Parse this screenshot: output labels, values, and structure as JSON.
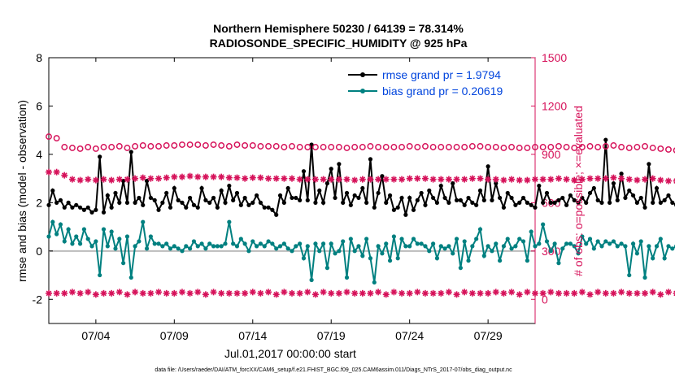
{
  "chart_data": {
    "type": "line",
    "title_line1": "Northern Hemisphere 50230 / 64139 = 78.314%",
    "title_line2": "RADIOSONDE_SPECIFIC_HUMIDITY @ 925 hPa",
    "xlabel": "Jul.01,2017 00:00:00 start",
    "ylabel_left": "rmse and bias (model - observation)",
    "ylabel_right": "# of obs: o=possible; ×=evaluated",
    "footer": "data file: /Users/raeder/DAI/ATM_forcXX/CAM6_setup/f.e21.FHIST_BGC.f09_025.CAM6assim.011/Diags_NTrS_2017-07/obs_diag_output.nc",
    "x_range": [
      1.0,
      32.0
    ],
    "xticks": [
      4,
      9,
      14,
      19,
      24,
      29
    ],
    "xtick_labels": [
      "07/04",
      "07/09",
      "07/14",
      "07/19",
      "07/24",
      "07/29"
    ],
    "ylim_left": [
      -3,
      8
    ],
    "yticks_left": [
      -2,
      0,
      2,
      4,
      6,
      8
    ],
    "yticks_left_labels": [
      "-2",
      "0",
      "2",
      "4",
      "6",
      "8"
    ],
    "ylim_right": [
      -150,
      1500
    ],
    "yticks_right": [
      0,
      300,
      600,
      900,
      1200,
      1500
    ],
    "yticks_right_labels": [
      "0",
      "300",
      "600",
      "900",
      "1200",
      "1500"
    ],
    "colors": {
      "rmse": "#000000",
      "bias": "#008080",
      "obs": "#d6125a",
      "right_axis": "#d6125a",
      "legend_text": "#0044dd",
      "zero_line": "#bbbbbb"
    },
    "legend": [
      {
        "label": "rmse grand pr = 1.9794",
        "series": "rmse"
      },
      {
        "label": "bias grand pr = 0.20619",
        "series": "bias"
      }
    ],
    "x_start": 1.0,
    "x_step": 0.25,
    "series": [
      {
        "name": "rmse",
        "axis": "left",
        "values": [
          1.9,
          2.5,
          2.0,
          2.1,
          1.8,
          2.0,
          1.8,
          1.9,
          1.8,
          1.7,
          1.8,
          1.6,
          1.7,
          3.9,
          1.6,
          2.3,
          1.8,
          2.4,
          2.0,
          2.9,
          2.0,
          4.1,
          2.0,
          2.2,
          1.9,
          2.9,
          2.2,
          2.1,
          1.7,
          2.0,
          2.4,
          1.8,
          2.6,
          2.1,
          2.0,
          1.8,
          2.2,
          1.9,
          1.8,
          2.6,
          2.1,
          2.0,
          2.2,
          1.8,
          2.5,
          2.0,
          2.7,
          2.1,
          2.4,
          1.9,
          2.2,
          1.9,
          2.0,
          2.3,
          2.0,
          1.8,
          1.8,
          1.7,
          1.5,
          2.3,
          2.0,
          2.6,
          2.2,
          2.2,
          2.1,
          3.3,
          2.1,
          4.4,
          2.0,
          2.5,
          2.0,
          2.8,
          3.4,
          2.2,
          3.6,
          2.0,
          2.4,
          1.9,
          2.3,
          2.2,
          2.6,
          2.0,
          3.8,
          1.8,
          2.4,
          3.1,
          2.0,
          2.3,
          1.7,
          1.8,
          2.2,
          1.5,
          2.2,
          1.7,
          2.1,
          2.4,
          1.9,
          2.5,
          2.2,
          2.0,
          2.7,
          2.2,
          2.0,
          2.8,
          2.1,
          2.1,
          1.9,
          2.2,
          2.0,
          1.9,
          2.5,
          2.1,
          3.5,
          2.1,
          2.8,
          2.2,
          1.8,
          2.4,
          2.2,
          1.9,
          2.0,
          2.2,
          2.0,
          1.9,
          1.8,
          2.7,
          2.0,
          2.4,
          2.0,
          2.0,
          2.1,
          2.2,
          1.9,
          2.3,
          2.1,
          2.0,
          2.2,
          2.0,
          2.4,
          2.6,
          2.1,
          2.0,
          4.6,
          2.0,
          2.8,
          2.1,
          3.2,
          2.2,
          2.5,
          2.3,
          2.0,
          2.2,
          1.8,
          3.6,
          2.0,
          2.6,
          2.0,
          2.1,
          2.3,
          2.0,
          1.9,
          3.5,
          2.0,
          2.2,
          2.0,
          2.1,
          2.4,
          3.4
        ]
      },
      {
        "name": "bias",
        "axis": "left",
        "values": [
          0.6,
          1.2,
          0.7,
          1.1,
          0.4,
          0.9,
          0.3,
          0.6,
          0.3,
          0.9,
          0.5,
          0.2,
          0.4,
          -1.0,
          0.9,
          0.2,
          0.8,
          0.1,
          0.5,
          -0.5,
          0.6,
          -1.1,
          0.2,
          0.4,
          1.2,
          0.1,
          0.6,
          0.3,
          0.3,
          0.2,
          0.3,
          0.1,
          0.2,
          0.1,
          0.0,
          0.2,
          0.1,
          0.4,
          0.2,
          0.3,
          0.1,
          0.3,
          0.2,
          0.2,
          0.2,
          0.3,
          1.2,
          0.3,
          0.2,
          0.5,
          0.3,
          0.0,
          0.4,
          0.2,
          0.3,
          0.2,
          0.4,
          0.3,
          0.1,
          0.2,
          0.3,
          0.1,
          0.0,
          0.2,
          0.3,
          -0.3,
          0.2,
          -1.2,
          0.3,
          0.0,
          0.3,
          -0.7,
          0.3,
          -0.1,
          0.0,
          0.4,
          -1.1,
          0.5,
          0.0,
          0.2,
          -0.2,
          0.5,
          -0.3,
          -1.3,
          0.2,
          -0.1,
          0.3,
          -0.4,
          0.6,
          -0.3,
          0.5,
          0.2,
          0.2,
          0.5,
          0.3,
          0.3,
          0.2,
          0.0,
          0.3,
          -0.3,
          0.2,
          0.1,
          0.2,
          -0.1,
          0.5,
          -0.7,
          0.4,
          -0.4,
          0.2,
          0.5,
          0.9,
          -0.2,
          0.2,
          0.0,
          0.3,
          -0.4,
          0.2,
          0.5,
          0.1,
          0.2,
          0.5,
          0.4,
          -0.4,
          0.8,
          0.2,
          0.3,
          1.1,
          0.4,
          0.0,
          0.3,
          -0.5,
          0.1,
          0.3,
          0.3,
          0.2,
          -0.1,
          0.6,
          0.3,
          0.5,
          0.1,
          0.4,
          0.2,
          0.4,
          0.3,
          0.4,
          0.2,
          0.3,
          0.2,
          -1.0,
          0.3,
          -0.1,
          0.4,
          -1.1,
          0.2,
          -0.3,
          0.2,
          0.5,
          -0.3,
          0.2,
          0.1,
          0.2,
          0.3,
          0.0,
          0.2,
          0.3,
          0.3,
          0.2,
          0.3,
          0.0,
          0.1,
          -0.5,
          -1.0
        ]
      },
      {
        "name": "obs_possible",
        "axis": "right",
        "marker": "circle",
        "values": [
          1010,
          965,
          1000,
          985,
          945,
          995,
          940,
          990,
          935,
          990,
          945,
          985,
          935,
          985,
          945,
          995,
          945,
          995,
          950,
          990,
          940,
          995,
          950,
          1000,
          955,
          995,
          950,
          1000,
          950,
          1005,
          955,
          1000,
          955,
          1005,
          960,
          1005,
          960,
          1010,
          960,
          1000,
          955,
          1005,
          960,
          1010,
          955,
          1000,
          950,
          1005,
          960,
          1000,
          955,
          1010,
          955,
          1005,
          950,
          1000,
          950,
          1005,
          950,
          1000,
          945,
          1000,
          950,
          1000,
          945,
          995,
          945,
          1000,
          945,
          995,
          945,
          995,
          945,
          1000,
          945,
          995,
          940,
          1000,
          945,
          995,
          945,
          1000,
          950,
          1005,
          945,
          995,
          945,
          1000,
          945,
          995,
          945,
          995,
          950,
          1000,
          945,
          995,
          950,
          1000,
          945,
          995,
          945,
          1000,
          945,
          990,
          945,
          1000,
          945,
          995,
          950,
          1000,
          950,
          995,
          945,
          995,
          945,
          990,
          940,
          995,
          945,
          990,
          940,
          990,
          940,
          995,
          945,
          990,
          945,
          1000,
          945,
          995,
          950,
          1000,
          945,
          995,
          940,
          990,
          945,
          995,
          950,
          1000,
          945,
          1005,
          950,
          1000,
          955,
          1000,
          945,
          995,
          940,
          990,
          945,
          1000,
          950,
          990,
          940,
          985,
          935,
          980,
          930,
          975,
          925,
          970,
          920,
          965,
          915,
          960,
          910,
          955
        ]
      },
      {
        "name": "obs_evaluated",
        "axis": "right",
        "marker": "asterisk",
        "values": [
          790,
          770,
          790,
          775,
          770,
          780,
          745,
          780,
          740,
          770,
          745,
          765,
          740,
          770,
          745,
          770,
          740,
          775,
          745,
          770,
          745,
          775,
          750,
          780,
          755,
          775,
          750,
          780,
          750,
          785,
          755,
          785,
          760,
          790,
          760,
          790,
          765,
          790,
          760,
          790,
          760,
          785,
          760,
          790,
          760,
          785,
          755,
          785,
          755,
          780,
          750,
          790,
          755,
          785,
          755,
          780,
          750,
          785,
          750,
          780,
          750,
          785,
          750,
          780,
          745,
          780,
          745,
          780,
          745,
          775,
          745,
          775,
          745,
          780,
          745,
          775,
          745,
          775,
          740,
          780,
          745,
          780,
          745,
          785,
          745,
          780,
          745,
          780,
          745,
          780,
          745,
          780,
          750,
          785,
          750,
          780,
          750,
          785,
          745,
          780,
          745,
          780,
          745,
          775,
          745,
          780,
          745,
          780,
          750,
          780,
          750,
          780,
          745,
          780,
          745,
          775,
          740,
          775,
          745,
          775,
          740,
          775,
          740,
          775,
          745,
          770,
          745,
          780,
          745,
          775,
          750,
          780,
          745,
          775,
          740,
          770,
          745,
          775,
          750,
          780,
          750,
          785,
          750,
          780,
          755,
          785,
          750,
          780,
          745,
          775,
          740,
          770,
          745,
          780,
          750,
          775,
          740,
          770,
          735,
          765,
          735,
          760,
          730,
          760,
          725,
          755,
          725,
          750,
          720,
          750,
          715,
          745
        ]
      },
      {
        "name": "obs_bottom",
        "axis": "left",
        "marker": "asterisk",
        "values": [
          -1.75,
          -1.9,
          -1.75,
          -1.85,
          -1.75,
          -1.8,
          -1.7,
          -1.8,
          -1.75,
          -1.8,
          -1.7,
          -1.75,
          -1.8,
          -1.7,
          -1.75,
          -1.8,
          -1.75,
          -1.8,
          -1.7,
          -1.75,
          -1.8,
          -1.75,
          -1.7,
          -1.8,
          -1.75,
          -1.85,
          -1.75,
          -1.8,
          -1.7,
          -1.8,
          -1.75,
          -1.85,
          -1.75,
          -1.8,
          -1.7,
          -1.8,
          -1.75,
          -1.8,
          -1.7,
          -1.75,
          -1.8,
          -1.75,
          -1.7,
          -1.8,
          -1.75,
          -1.85,
          -1.75,
          -1.8,
          -1.75,
          -1.85,
          -1.75,
          -1.8,
          -1.7,
          -1.8,
          -1.75,
          -1.8,
          -1.7,
          -1.75,
          -1.8,
          -1.75,
          -1.7,
          -1.8,
          -1.75,
          -1.85,
          -1.75,
          -1.8,
          -1.7,
          -1.75,
          -1.8,
          -1.75,
          -1.7,
          -1.8,
          -1.75,
          -1.85,
          -1.75,
          -1.8,
          -1.7,
          -1.8,
          -1.75,
          -1.8,
          -1.75,
          -1.85,
          -1.75,
          -1.8,
          -1.7,
          -1.75,
          -1.8,
          -1.75,
          -1.7,
          -1.8,
          -1.75,
          -1.85,
          -1.75,
          -1.8,
          -1.7,
          -1.8,
          -1.75,
          -1.8,
          -1.75,
          -1.85,
          -1.75,
          -1.8,
          -1.7,
          -1.75,
          -1.8,
          -1.75,
          -1.7,
          -1.8,
          -1.75,
          -1.85,
          -1.75,
          -1.8,
          -1.75,
          -1.85,
          -1.7,
          -1.8,
          -1.75,
          -1.8,
          -1.7,
          -1.75,
          -1.8,
          -1.75,
          -1.7,
          -1.8,
          -1.75,
          -1.85,
          -1.75,
          -1.8,
          -1.7,
          -1.8,
          -1.75,
          -1.8,
          -1.75,
          -1.85,
          -1.75,
          -1.8,
          -1.7,
          -1.75,
          -1.8,
          -1.75,
          -1.7,
          -1.8,
          -1.75,
          -1.85,
          -1.75,
          -1.8,
          -1.7,
          -1.8,
          -1.75,
          -1.8,
          -1.75,
          -1.85,
          -1.75,
          -1.8,
          -1.7,
          -1.75,
          -1.8,
          -1.75,
          -1.7,
          -1.8,
          -1.75,
          -1.85,
          -1.75,
          -1.8,
          -1.7,
          -1.6,
          -1.75,
          -1.5,
          -1.7,
          -2.0
        ]
      }
    ]
  }
}
